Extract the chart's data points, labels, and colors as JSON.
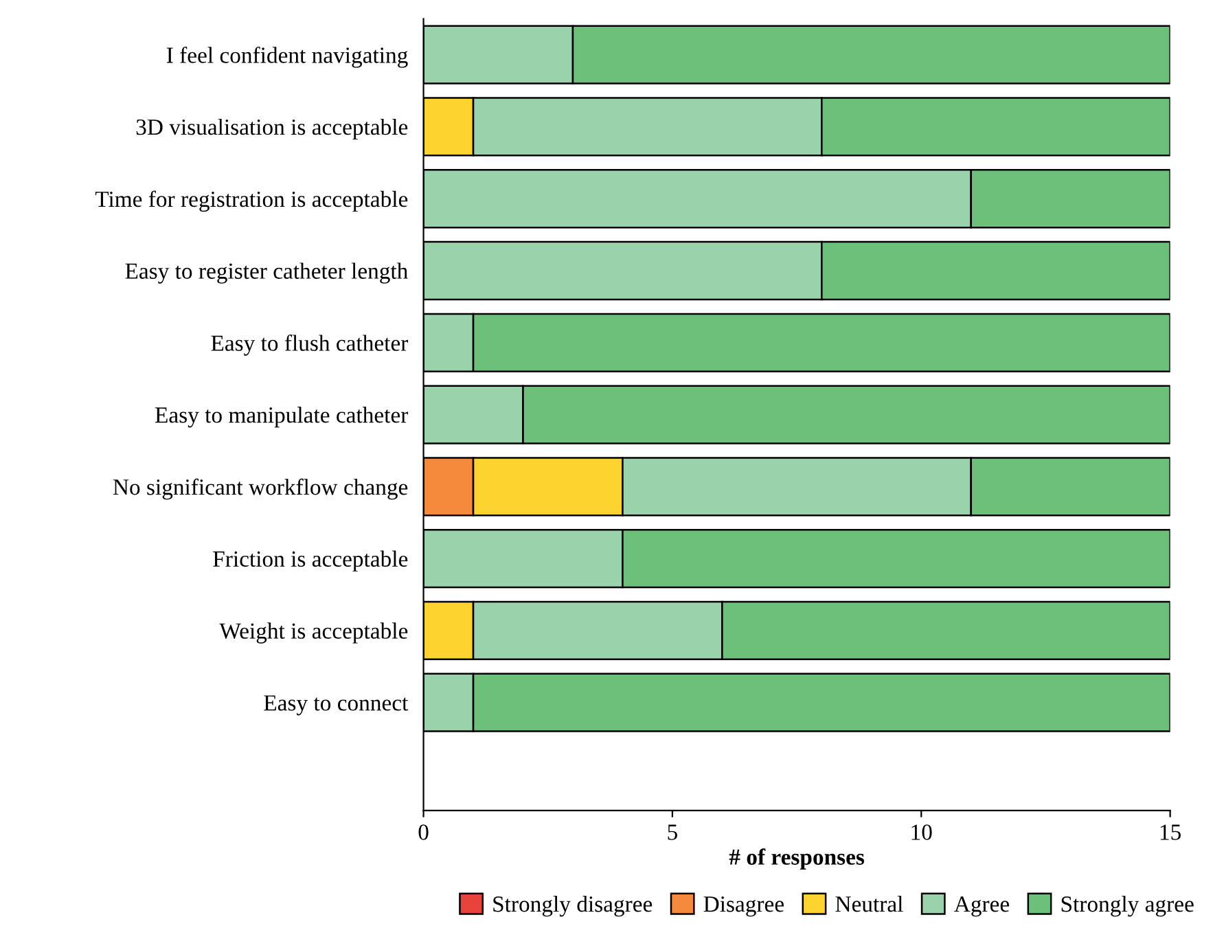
{
  "chart_data": {
    "type": "bar",
    "orientation": "horizontal",
    "stacked": true,
    "xlabel": "# of responses",
    "categories": [
      "I feel confident navigating",
      "3D visualisation is acceptable",
      "Time for registration is acceptable",
      "Easy to register catheter length",
      "Easy to flush catheter",
      "Easy to manipulate catheter",
      "No significant workflow change",
      "Friction is acceptable",
      "Weight is acceptable",
      "Easy to connect"
    ],
    "series": [
      {
        "name": "Strongly disagree",
        "color": "#e8433a",
        "values": [
          0,
          0,
          0,
          0,
          0,
          0,
          0,
          0,
          0,
          0
        ]
      },
      {
        "name": "Disagree",
        "color": "#f58a3c",
        "values": [
          0,
          0,
          0,
          0,
          0,
          0,
          1,
          0,
          0,
          0
        ]
      },
      {
        "name": "Neutral",
        "color": "#fdd32f",
        "values": [
          0,
          1,
          0,
          0,
          0,
          0,
          3,
          0,
          1,
          0
        ]
      },
      {
        "name": "Agree",
        "color": "#9ad3ab",
        "values": [
          3,
          7,
          11,
          8,
          1,
          2,
          7,
          4,
          5,
          1
        ]
      },
      {
        "name": "Strongly agree",
        "color": "#6cc07a",
        "values": [
          12,
          7,
          4,
          7,
          14,
          13,
          4,
          11,
          9,
          14
        ]
      }
    ],
    "xlim": [
      0,
      15
    ],
    "xticks": [
      0,
      5,
      10,
      15
    ],
    "grid": false,
    "legend": "bottom"
  }
}
